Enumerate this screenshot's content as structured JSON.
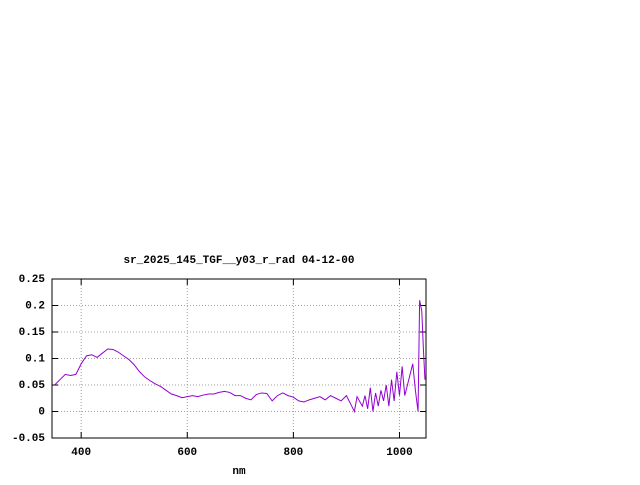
{
  "chart_data": {
    "type": "line",
    "title": "sr_2025_145_TGF__y03_r_rad 04-12-00",
    "x_label": "nm",
    "xlim": [
      345,
      1050
    ],
    "xticks": [
      400,
      600,
      800,
      1000
    ],
    "ylim": [
      -0.05,
      0.25
    ],
    "yticks": [
      -0.05,
      0,
      0.05,
      0.1,
      0.15,
      0.2,
      0.25
    ],
    "grid": true,
    "series": [
      {
        "color": "#9400d3",
        "x": [
          350,
          360,
          370,
          380,
          390,
          400,
          410,
          420,
          430,
          440,
          450,
          460,
          470,
          480,
          490,
          500,
          510,
          520,
          530,
          540,
          550,
          560,
          570,
          580,
          590,
          600,
          610,
          620,
          630,
          640,
          650,
          660,
          670,
          680,
          690,
          700,
          710,
          720,
          730,
          740,
          750,
          760,
          770,
          780,
          790,
          800,
          810,
          820,
          830,
          840,
          850,
          860,
          870,
          880,
          890,
          900,
          910,
          915,
          920,
          930,
          935,
          940,
          945,
          950,
          955,
          960,
          965,
          970,
          975,
          980,
          985,
          990,
          995,
          1000,
          1005,
          1010,
          1020,
          1025,
          1030,
          1035,
          1038,
          1042,
          1045,
          1048
        ],
        "values": [
          0.05,
          0.06,
          0.07,
          0.068,
          0.07,
          0.09,
          0.105,
          0.107,
          0.102,
          0.11,
          0.118,
          0.117,
          0.112,
          0.105,
          0.098,
          0.088,
          0.075,
          0.065,
          0.058,
          0.052,
          0.047,
          0.04,
          0.033,
          0.03,
          0.026,
          0.028,
          0.03,
          0.028,
          0.031,
          0.033,
          0.033,
          0.036,
          0.038,
          0.036,
          0.03,
          0.03,
          0.025,
          0.022,
          0.032,
          0.035,
          0.034,
          0.02,
          0.03,
          0.035,
          0.03,
          0.027,
          0.02,
          0.018,
          0.022,
          0.025,
          0.028,
          0.022,
          0.03,
          0.025,
          0.02,
          0.03,
          0.01,
          0.0,
          0.028,
          0.01,
          0.03,
          0.005,
          0.045,
          0.0,
          0.035,
          0.01,
          0.04,
          0.02,
          0.05,
          0.01,
          0.06,
          0.02,
          0.075,
          0.03,
          0.085,
          0.03,
          0.07,
          0.09,
          0.04,
          0.0,
          0.21,
          0.19,
          0.12,
          0.06
        ]
      }
    ]
  }
}
